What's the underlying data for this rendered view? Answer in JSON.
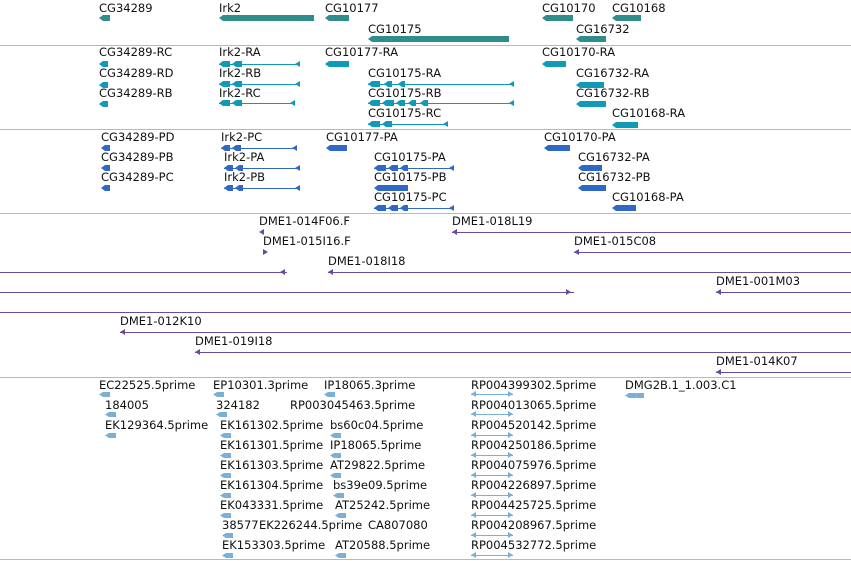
{
  "colors": {
    "gene": "#2f8e8a",
    "transcript_rna": "#0f9ab8",
    "protein": "#2f68c6",
    "clone": "#6a4ba0",
    "est": "#7ab0d8",
    "divider": "#b9b9b9"
  },
  "genes": [
    "CG34289",
    "Irk2",
    "CG10177",
    "CG10175",
    "CG10170",
    "CG10168",
    "CG16732"
  ],
  "transcripts": [
    "CG34289-RC",
    "CG34289-RD",
    "CG34289-RB",
    "Irk2-RA",
    "Irk2-RB",
    "Irk2-RC",
    "CG10177-RA",
    "CG10175-RA",
    "CG10175-RB",
    "CG10175-RC",
    "CG10170-RA",
    "CG16732-RA",
    "CG16732-RB",
    "CG10168-RA"
  ],
  "proteins": [
    "CG34289-PD",
    "CG34289-PB",
    "CG34289-PC",
    "Irk2-PC",
    "Irk2-PA",
    "Irk2-PB",
    "CG10177-PA",
    "CG10175-PA",
    "CG10175-PB",
    "CG10175-PC",
    "CG10170-PA",
    "CG16732-PA",
    "CG16732-PB",
    "CG10168-PA"
  ],
  "clones": [
    "DME1-014F06.F",
    "DME1-018L19",
    "DME1-015I16.F",
    "DME1-015C08",
    "DME1-018I18",
    "DME1-001M03",
    "DME1-012K10",
    "DME1-019I18",
    "DME1-014K07"
  ],
  "ests": [
    "EC22525.5prime",
    "184005",
    "EK129364.5prime",
    "EP10301.3prime",
    "324182",
    "EK161302.5prime",
    "EK161301.5prime",
    "EK161303.5prime",
    "EK161304.5prime",
    "EK043331.5prime",
    "38577",
    "EK153303.5prime",
    "IP18065.3prime",
    "RP003045463.5prime",
    "bs60c04.5prime",
    "IP18065.5prime",
    "AT29822.5prime",
    "bs39e09.5prime",
    "AT25242.5prime",
    "EK226244.5prime",
    "CA807080",
    "AT20588.5prime",
    "RP004399302.5prime",
    "RP004013065.5prime",
    "RP004520142.5prime",
    "RP004250186.5prime",
    "RP004075976.5prime",
    "RP004226897.5prime",
    "RP004425725.5prime",
    "RP004208967.5prime",
    "RP004532772.5prime",
    "DMG2B.1_1.003.C1"
  ]
}
